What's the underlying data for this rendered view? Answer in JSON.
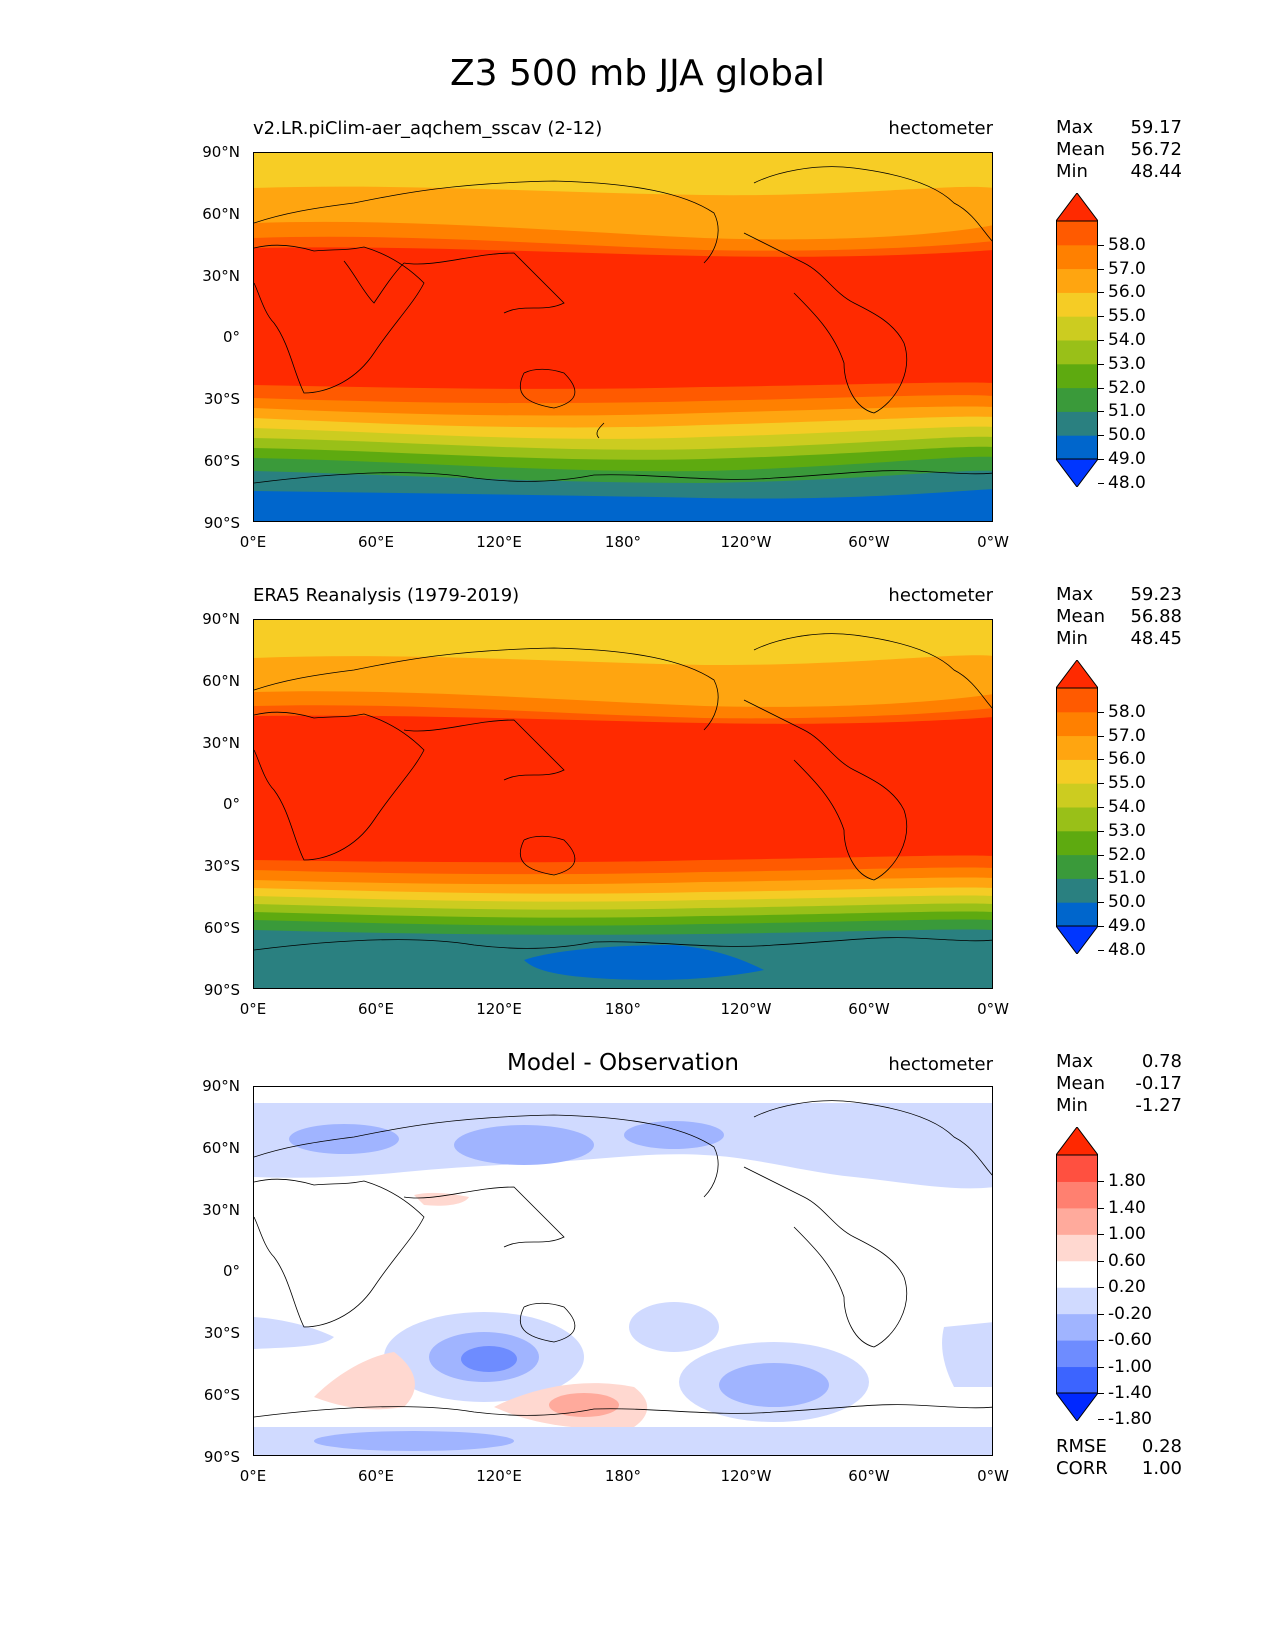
{
  "title": "Z3 500 mb JJA global",
  "lat_labels": [
    "90°N",
    "60°N",
    "30°N",
    "0°",
    "30°S",
    "60°S",
    "90°S"
  ],
  "lon_labels": [
    "0°E",
    "60°E",
    "120°E",
    "180°",
    "120°W",
    "60°W",
    "0°W"
  ],
  "panels": [
    {
      "id": "model",
      "title": "v2.LR.piClim-aer_aqchem_sscav (2-12)",
      "units": "hectometer",
      "stats": [
        {
          "label": "Max",
          "value": "59.17"
        },
        {
          "label": "Mean",
          "value": "56.72"
        },
        {
          "label": "Min",
          "value": "48.44"
        }
      ],
      "colorbar_ticks": [
        "58.0",
        "57.0",
        "56.0",
        "55.0",
        "54.0",
        "53.0",
        "52.0",
        "51.0",
        "50.0",
        "49.0",
        "48.0"
      ]
    },
    {
      "id": "obs",
      "title": "ERA5 Reanalysis (1979-2019)",
      "units": "hectometer",
      "stats": [
        {
          "label": "Max",
          "value": "59.23"
        },
        {
          "label": "Mean",
          "value": "56.88"
        },
        {
          "label": "Min",
          "value": "48.45"
        }
      ],
      "colorbar_ticks": [
        "58.0",
        "57.0",
        "56.0",
        "55.0",
        "54.0",
        "53.0",
        "52.0",
        "51.0",
        "50.0",
        "49.0",
        "48.0"
      ]
    },
    {
      "id": "diff",
      "title": "Model - Observation",
      "units": "hectometer",
      "stats": [
        {
          "label": "Max",
          "value": "0.78"
        },
        {
          "label": "Mean",
          "value": "-0.17"
        },
        {
          "label": "Min",
          "value": "-1.27"
        }
      ],
      "colorbar_ticks": [
        "1.80",
        "1.40",
        "1.00",
        "0.60",
        "0.20",
        "-0.20",
        "-0.60",
        "-1.00",
        "-1.40",
        "-1.80"
      ],
      "extra_stats": [
        {
          "label": "RMSE",
          "value": "0.28"
        },
        {
          "label": "CORR",
          "value": "1.00"
        }
      ]
    }
  ],
  "colors": {
    "abs_levels": [
      "#0036ff",
      "#0066cc",
      "#2a8080",
      "#3a9a3a",
      "#5eaa10",
      "#99c018",
      "#cccc20",
      "#f5cc25",
      "#ffa510",
      "#ff8000",
      "#ff5a00",
      "#ff2a00"
    ],
    "diff_levels": [
      "#0028ff",
      "#3c64ff",
      "#6e8cff",
      "#a0b4ff",
      "#d0daff",
      "#ffffff",
      "#ffd8d0",
      "#ffaa9c",
      "#ff8070",
      "#ff5040",
      "#ff2800"
    ]
  }
}
